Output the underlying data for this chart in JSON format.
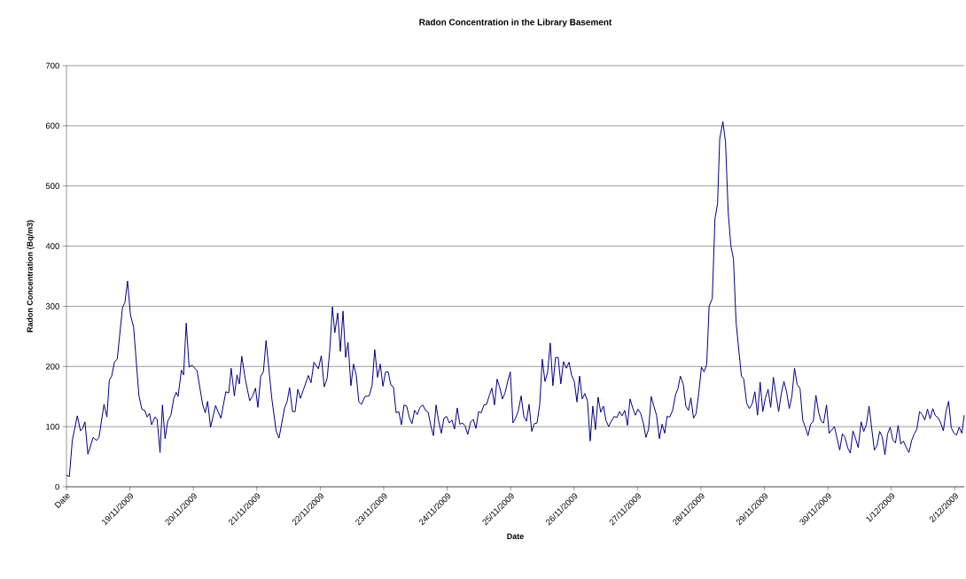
{
  "chart_data": {
    "type": "line",
    "title": "Radon Concentration in the Library Basement",
    "xlabel": "Date",
    "ylabel": "Radon Concentration (Bq/m3)",
    "x": [
      "2009-11-18T00:00",
      "2009-11-18T01:06",
      "2009-11-18T02:12",
      "2009-11-18T04:06",
      "2009-11-18T05:18",
      "2009-11-18T06:06",
      "2009-11-18T07:00",
      "2009-11-18T08:06",
      "2009-11-18T10:06",
      "2009-11-18T11:24",
      "2009-11-18T12:18",
      "2009-11-18T14:12",
      "2009-11-18T15:18",
      "2009-11-18T16:12",
      "2009-11-18T17:06",
      "2009-11-18T18:12",
      "2009-11-18T19:12",
      "2009-11-18T21:12",
      "2009-11-18T22:06",
      "2009-11-18T23:06",
      "2009-11-19T00:12",
      "2009-11-19T01:24",
      "2009-11-19T03:24",
      "2009-11-19T04:30",
      "2009-11-19T05:36",
      "2009-11-19T06:30",
      "2009-11-19T07:24",
      "2009-11-19T08:12",
      "2009-11-19T09:30",
      "2009-11-19T10:18",
      "2009-11-19T11:24",
      "2009-11-19T12:18",
      "2009-11-19T13:18",
      "2009-11-19T14:18",
      "2009-11-19T15:30",
      "2009-11-19T16:36",
      "2009-11-19T17:30",
      "2009-11-19T18:12",
      "2009-11-19T19:30",
      "2009-11-19T20:18",
      "2009-11-19T21:18",
      "2009-11-19T22:24",
      "2009-11-19T23:30",
      "2009-11-20T01:24",
      "2009-11-20T03:30",
      "2009-11-20T04:30",
      "2009-11-20T05:24",
      "2009-11-20T06:30",
      "2009-11-20T08:24",
      "2009-11-20T10:24",
      "2009-11-20T12:18",
      "2009-11-20T13:24",
      "2009-11-20T14:18",
      "2009-11-20T15:30",
      "2009-11-20T16:30",
      "2009-11-20T17:24",
      "2009-11-20T18:18",
      "2009-11-20T19:36",
      "2009-11-20T21:18",
      "2009-11-20T22:24",
      "2009-11-20T23:30",
      "2009-11-21T00:24",
      "2009-11-21T01:30",
      "2009-11-21T02:30",
      "2009-11-21T03:30",
      "2009-11-21T05:42",
      "2009-11-21T07:18",
      "2009-11-21T08:24",
      "2009-11-21T10:30",
      "2009-11-21T11:30",
      "2009-11-21T12:24",
      "2009-11-21T13:30",
      "2009-11-21T14:30",
      "2009-11-21T15:30",
      "2009-11-21T16:30",
      "2009-11-21T19:30",
      "2009-11-21T20:30",
      "2009-11-21T21:36",
      "2009-11-21T23:18",
      "2009-11-22T00:24",
      "2009-11-22T01:30",
      "2009-11-22T02:36",
      "2009-11-22T03:36",
      "2009-11-22T04:36",
      "2009-11-22T05:30",
      "2009-11-22T06:36",
      "2009-11-22T07:36",
      "2009-11-22T08:36",
      "2009-11-22T09:36",
      "2009-11-22T10:30",
      "2009-11-22T11:36",
      "2009-11-22T12:36",
      "2009-11-22T13:36",
      "2009-11-22T14:36",
      "2009-11-22T15:36",
      "2009-11-22T16:54",
      "2009-11-22T18:30",
      "2009-11-22T19:36",
      "2009-11-22T20:36",
      "2009-11-22T21:42",
      "2009-11-22T22:42",
      "2009-11-22T23:42",
      "2009-11-23T00:42",
      "2009-11-23T01:42",
      "2009-11-23T02:42",
      "2009-11-23T03:42",
      "2009-11-23T04:42",
      "2009-11-23T05:42",
      "2009-11-23T06:42",
      "2009-11-23T07:42",
      "2009-11-23T08:42",
      "2009-11-23T09:42",
      "2009-11-23T10:42",
      "2009-11-23T11:42",
      "2009-11-23T12:42",
      "2009-11-23T13:42",
      "2009-11-23T14:48",
      "2009-11-23T15:48",
      "2009-11-23T16:48",
      "2009-11-23T17:48",
      "2009-11-23T18:48",
      "2009-11-23T19:48",
      "2009-11-23T20:48",
      "2009-11-23T21:48",
      "2009-11-23T22:48",
      "2009-11-23T23:48",
      "2009-11-24T00:48",
      "2009-11-24T01:48",
      "2009-11-24T02:48",
      "2009-11-24T03:48",
      "2009-11-24T04:48",
      "2009-11-24T05:48",
      "2009-11-24T06:48",
      "2009-11-24T07:48",
      "2009-11-24T08:54",
      "2009-11-24T09:54",
      "2009-11-24T10:54",
      "2009-11-24T11:54",
      "2009-11-24T12:54",
      "2009-11-24T13:54",
      "2009-11-24T14:54",
      "2009-11-24T15:54",
      "2009-11-24T16:54",
      "2009-11-24T17:54",
      "2009-11-24T18:54",
      "2009-11-24T19:54",
      "2009-11-24T20:54",
      "2009-11-24T21:54",
      "2009-11-24T22:54",
      "2009-11-24T23:54",
      "2009-11-25T00:54",
      "2009-11-25T01:54",
      "2009-11-25T02:54",
      "2009-11-25T04:00",
      "2009-11-25T05:00",
      "2009-11-25T06:00",
      "2009-11-25T07:00",
      "2009-11-25T08:00",
      "2009-11-25T09:00",
      "2009-11-25T10:00",
      "2009-11-25T11:00",
      "2009-11-25T12:00",
      "2009-11-25T13:00",
      "2009-11-25T14:00",
      "2009-11-25T15:00",
      "2009-11-25T16:00",
      "2009-11-25T17:00",
      "2009-11-25T18:00",
      "2009-11-25T19:00",
      "2009-11-25T20:00",
      "2009-11-25T21:06",
      "2009-11-25T22:06",
      "2009-11-25T23:06",
      "2009-11-26T00:06",
      "2009-11-26T01:06",
      "2009-11-26T02:06",
      "2009-11-26T03:06",
      "2009-11-26T04:06",
      "2009-11-26T05:06",
      "2009-11-26T06:06",
      "2009-11-26T07:06",
      "2009-11-26T08:06",
      "2009-11-26T09:06",
      "2009-11-26T10:06",
      "2009-11-26T11:06",
      "2009-11-26T12:06",
      "2009-11-26T13:06",
      "2009-11-26T14:06",
      "2009-11-26T15:12",
      "2009-11-26T16:12",
      "2009-11-26T17:12",
      "2009-11-26T18:12",
      "2009-11-26T19:12",
      "2009-11-26T20:12",
      "2009-11-26T21:12",
      "2009-11-26T22:12",
      "2009-11-26T23:12",
      "2009-11-27T00:12",
      "2009-11-27T01:12",
      "2009-11-27T02:12",
      "2009-11-27T03:12",
      "2009-11-27T04:12",
      "2009-11-27T05:12",
      "2009-11-27T06:12",
      "2009-11-27T07:12",
      "2009-11-27T08:18",
      "2009-11-27T09:18",
      "2009-11-27T10:18",
      "2009-11-27T11:12",
      "2009-11-27T12:12",
      "2009-11-27T13:18",
      "2009-11-27T14:24",
      "2009-11-27T15:18",
      "2009-11-27T16:12",
      "2009-11-27T17:18",
      "2009-11-27T18:18",
      "2009-11-27T19:18",
      "2009-11-27T20:12",
      "2009-11-27T21:12",
      "2009-11-27T22:12",
      "2009-11-27T23:12",
      "2009-11-28T00:12",
      "2009-11-28T01:12",
      "2009-11-28T02:12",
      "2009-11-28T03:06",
      "2009-11-28T04:18",
      "2009-11-28T05:18",
      "2009-11-28T06:18",
      "2009-11-28T07:06",
      "2009-11-28T08:18",
      "2009-11-28T09:18",
      "2009-11-28T10:18",
      "2009-11-28T11:18",
      "2009-11-28T12:18",
      "2009-11-28T13:18",
      "2009-11-28T15:18",
      "2009-11-28T16:12",
      "2009-11-28T17:18",
      "2009-11-28T18:18",
      "2009-11-28T19:24",
      "2009-11-28T20:24",
      "2009-11-28T21:24",
      "2009-11-28T22:24",
      "2009-11-28T23:24",
      "2009-11-29T00:24",
      "2009-11-29T01:24",
      "2009-11-29T02:24",
      "2009-11-29T03:24",
      "2009-11-29T04:24",
      "2009-11-29T05:24",
      "2009-11-29T06:24",
      "2009-11-29T07:24",
      "2009-11-29T08:24",
      "2009-11-29T09:24",
      "2009-11-29T10:24",
      "2009-11-29T11:24",
      "2009-11-29T12:24",
      "2009-11-29T13:30",
      "2009-11-29T14:30",
      "2009-11-29T15:30",
      "2009-11-29T16:30",
      "2009-11-29T17:30",
      "2009-11-29T18:30",
      "2009-11-29T19:30",
      "2009-11-29T20:30",
      "2009-11-29T21:30",
      "2009-11-29T22:24",
      "2009-11-29T23:30",
      "2009-11-30T00:30",
      "2009-11-30T02:30",
      "2009-11-30T04:30",
      "2009-11-30T05:30",
      "2009-11-30T06:30",
      "2009-11-30T07:30",
      "2009-11-30T08:30",
      "2009-11-30T09:30",
      "2009-11-30T10:30",
      "2009-11-30T11:30",
      "2009-11-30T12:36",
      "2009-11-30T13:36",
      "2009-11-30T14:36",
      "2009-11-30T15:36",
      "2009-11-30T16:36",
      "2009-11-30T17:36",
      "2009-11-30T18:36",
      "2009-11-30T19:36",
      "2009-11-30T20:36",
      "2009-11-30T21:36",
      "2009-11-30T22:36",
      "2009-11-30T23:36",
      "2009-12-01T00:36",
      "2009-12-01T01:36",
      "2009-12-01T02:36",
      "2009-12-01T03:36",
      "2009-12-01T04:36",
      "2009-12-01T05:42",
      "2009-12-01T06:42",
      "2009-12-01T07:42",
      "2009-12-01T08:42",
      "2009-12-01T09:42",
      "2009-12-01T10:42",
      "2009-12-01T11:42",
      "2009-12-01T12:42",
      "2009-12-01T13:42",
      "2009-12-01T14:42",
      "2009-12-01T15:42",
      "2009-12-01T16:42",
      "2009-12-01T17:42",
      "2009-12-01T18:42",
      "2009-12-01T19:42",
      "2009-12-01T20:42",
      "2009-12-01T21:42",
      "2009-12-01T22:42",
      "2009-12-01T23:42",
      "2009-12-02T00:42",
      "2009-12-02T01:42",
      "2009-12-02T02:42",
      "2009-12-02T03:36"
    ],
    "series": [
      {
        "color": "#000080",
        "values": [
          19,
          17,
          77,
          118,
          93,
          97,
          108,
          54,
          82,
          77,
          82,
          137,
          116,
          177,
          184,
          208,
          212,
          298,
          306,
          342,
          286,
          265,
          152,
          129,
          127,
          116,
          122,
          103,
          116,
          112,
          57,
          136,
          80,
          109,
          119,
          147,
          157,
          150,
          194,
          186,
          272,
          199,
          202,
          193,
          137,
          123,
          142,
          99,
          135,
          114,
          158,
          156,
          197,
          151,
          186,
          171,
          217,
          180,
          143,
          151,
          164,
          132,
          184,
          191,
          243,
          146,
          93,
          81,
          131,
          142,
          165,
          125,
          125,
          162,
          147,
          185,
          173,
          207,
          196,
          218,
          166,
          180,
          227,
          299,
          256,
          289,
          225,
          292,
          215,
          240,
          168,
          204,
          186,
          141,
          137,
          150,
          151,
          168,
          228,
          182,
          204,
          167,
          191,
          191,
          169,
          166,
          123,
          125,
          103,
          136,
          134,
          115,
          105,
          127,
          120,
          132,
          136,
          127,
          124,
          102,
          85,
          136,
          109,
          89,
          114,
          117,
          106,
          111,
          96,
          131,
          104,
          106,
          101,
          87,
          108,
          112,
          97,
          125,
          123,
          136,
          137,
          151,
          164,
          136,
          179,
          165,
          146,
          156,
          175,
          191,
          106,
          114,
          126,
          151,
          117,
          109,
          137,
          92,
          105,
          106,
          136,
          212,
          175,
          190,
          239,
          168,
          215,
          215,
          171,
          208,
          197,
          207,
          185,
          175,
          141,
          184,
          146,
          155,
          142,
          76,
          134,
          95,
          149,
          124,
          134,
          110,
          100,
          109,
          117,
          115,
          125,
          118,
          127,
          102,
          146,
          131,
          119,
          129,
          122,
          106,
          82,
          96,
          150,
          134,
          119,
          80,
          104,
          89,
          117,
          116,
          127,
          153,
          163,
          184,
          171,
          134,
          127,
          148,
          114,
          122,
          157,
          199,
          191,
          204,
          300,
          313,
          445,
          471,
          578,
          607,
          573,
          458,
          401,
          379,
          273,
          184,
          179,
          139,
          130,
          138,
          158,
          119,
          174,
          125,
          148,
          162,
          132,
          182,
          153,
          125,
          155,
          175,
          158,
          130,
          150,
          197,
          170,
          163,
          111,
          99,
          85,
          104,
          109,
          152,
          124,
          109,
          106,
          136,
          89,
          100,
          61,
          88,
          82,
          65,
          56,
          93,
          80,
          65,
          108,
          92,
          104,
          134,
          97,
          61,
          68,
          92,
          83,
          53,
          88,
          99,
          78,
          73,
          102,
          71,
          76,
          65,
          57,
          77,
          88,
          96,
          125,
          120,
          111,
          129,
          113,
          130,
          118,
          115,
          106,
          93,
          125,
          142,
          98,
          89,
          86,
          99,
          89,
          119
        ]
      }
    ],
    "xlim": [
      "2009-11-18T00:00",
      "2009-12-02T03:36"
    ],
    "xticks": [
      {
        "value": "2009-11-18",
        "label": "Date"
      },
      {
        "value": "2009-11-19",
        "label": "19/11/2009"
      },
      {
        "value": "2009-11-20",
        "label": "20/11/2009"
      },
      {
        "value": "2009-11-21",
        "label": "21/11/2009"
      },
      {
        "value": "2009-11-22",
        "label": "22/11/2009"
      },
      {
        "value": "2009-11-23",
        "label": "23/11/2009"
      },
      {
        "value": "2009-11-24",
        "label": "24/11/2009"
      },
      {
        "value": "2009-11-25",
        "label": "25/11/2009"
      },
      {
        "value": "2009-11-26",
        "label": "26/11/2009"
      },
      {
        "value": "2009-11-27",
        "label": "27/11/2009"
      },
      {
        "value": "2009-11-28",
        "label": "28/11/2009"
      },
      {
        "value": "2009-11-29",
        "label": "29/11/2009"
      },
      {
        "value": "2009-11-30",
        "label": "30/11/2009"
      },
      {
        "value": "2009-12-01",
        "label": "1/12/2009"
      },
      {
        "value": "2009-12-02",
        "label": "2/12/2009"
      }
    ],
    "ylim": [
      0,
      700
    ],
    "yticks": [
      0,
      100,
      200,
      300,
      400,
      500,
      600,
      700
    ],
    "grid": "y"
  }
}
